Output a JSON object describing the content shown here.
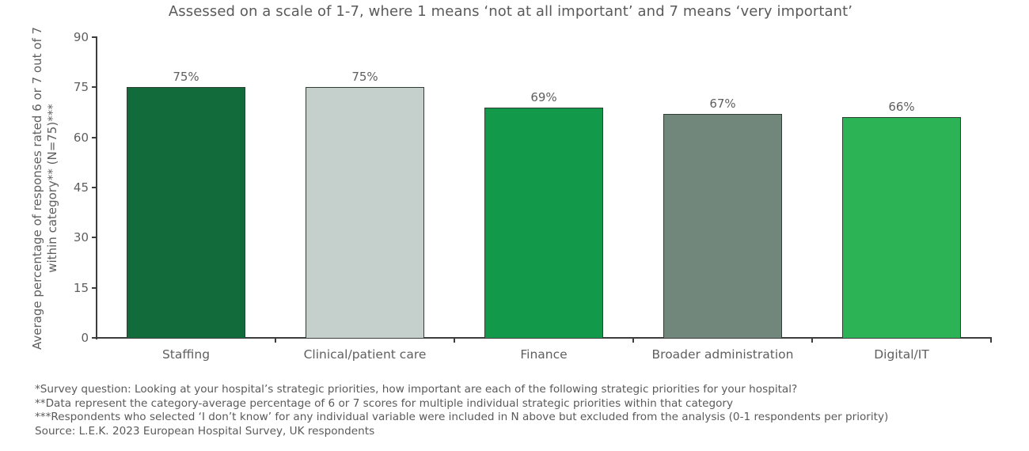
{
  "chart_data": {
    "type": "bar",
    "title": "Assessed on a scale of 1-7, where 1 means ‘not at all important’ and 7 means ‘very important’",
    "xlabel": "",
    "ylabel": "Average percentage of responses rated 6 or 7 out of 7 within category** (N=75)***",
    "ylim": [
      0,
      90
    ],
    "yticks": [
      0,
      15,
      30,
      45,
      60,
      75,
      90
    ],
    "categories": [
      "Staffing",
      "Clinical/patient care",
      "Finance",
      "Broader administration",
      "Digital/IT"
    ],
    "values": [
      75,
      75,
      69,
      67,
      66
    ],
    "data_labels": [
      "75%",
      "75%",
      "69%",
      "67%",
      "66%"
    ],
    "colors": [
      "#116b3a",
      "#c5d0cd",
      "#13994a",
      "#72877c",
      "#2bb355"
    ],
    "grid": false,
    "legend": null
  },
  "title": "Assessed on a scale of 1-7, where 1 means ‘not at all important’ and 7 means ‘very important’",
  "ylabel_line1": "Average percentage of responses rated 6 or 7 out of 7",
  "ylabel_line2": "within category** (N=75)***",
  "footnotes": [
    "*Survey question: Looking at your hospital’s strategic priorities, how important are each of the following strategic priorities for your hospital?",
    "**Data represent the category-average percentage of 6 or 7 scores for multiple individual strategic priorities within that category",
    "***Respondents who selected ‘I don’t know’ for any individual variable were included in N above but excluded from the analysis (0-1 respondents per priority)",
    "Source: L.E.K. 2023 European Hospital Survey, UK respondents"
  ]
}
